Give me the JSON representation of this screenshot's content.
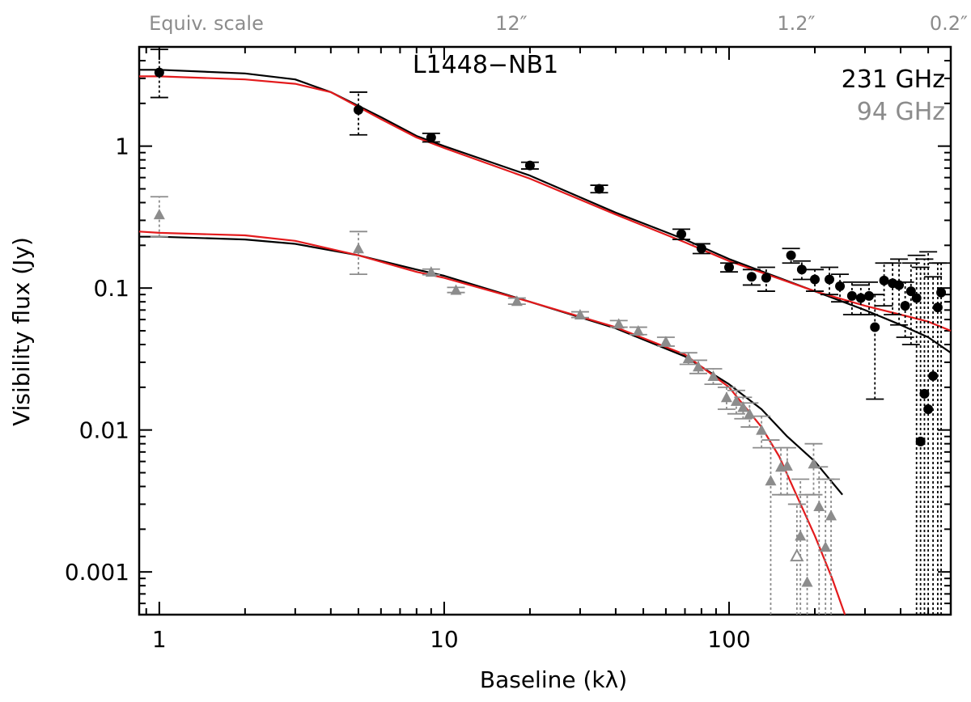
{
  "chart_data": {
    "type": "scatter",
    "title": "L1448−NB1",
    "xlabel": "Baseline (kλ)",
    "ylabel": "Visibility flux (Jy)",
    "xscale": "log",
    "yscale": "log",
    "xlim": [
      0.85,
      600
    ],
    "ylim": [
      0.0005,
      5
    ],
    "x_ticks": [
      1,
      10,
      100
    ],
    "x_tick_labels": [
      "1",
      "10",
      "100"
    ],
    "y_ticks": [
      0.001,
      0.01,
      0.1,
      1
    ],
    "y_tick_labels": [
      "0.001",
      "0.01",
      "0.1",
      "1"
    ],
    "top_axis": {
      "label": "Equiv. scale",
      "ticks": [
        {
          "text": "12",
          "baseline": 17.2
        },
        {
          "text": "1.2",
          "baseline": 172
        },
        {
          "text": "0.2",
          "baseline": 590
        }
      ],
      "unit_mark": "″"
    },
    "legend": [
      {
        "label": "231 GHz",
        "color": "#000000"
      },
      {
        "label": "94 GHz",
        "color": "#8c8c8c"
      }
    ],
    "series": [
      {
        "name": "231 GHz",
        "marker": "circle",
        "color": "#000000",
        "points": [
          {
            "x": 1,
            "y": 3.3,
            "lo": 2.2,
            "hi": 4.8
          },
          {
            "x": 5,
            "y": 1.8,
            "lo": 1.2,
            "hi": 2.4
          },
          {
            "x": 9,
            "y": 1.15,
            "lo": 1.07,
            "hi": 1.23
          },
          {
            "x": 20,
            "y": 0.73,
            "lo": 0.69,
            "hi": 0.77
          },
          {
            "x": 35,
            "y": 0.5,
            "lo": 0.47,
            "hi": 0.53
          },
          {
            "x": 68,
            "y": 0.24,
            "lo": 0.22,
            "hi": 0.26
          },
          {
            "x": 80,
            "y": 0.19,
            "lo": 0.175,
            "hi": 0.205
          },
          {
            "x": 100,
            "y": 0.14,
            "lo": 0.13,
            "hi": 0.15
          },
          {
            "x": 120,
            "y": 0.12,
            "lo": 0.105,
            "hi": 0.135
          },
          {
            "x": 135,
            "y": 0.118,
            "lo": 0.095,
            "hi": 0.14
          },
          {
            "x": 165,
            "y": 0.17,
            "lo": 0.15,
            "hi": 0.19
          },
          {
            "x": 180,
            "y": 0.135,
            "lo": 0.115,
            "hi": 0.155
          },
          {
            "x": 200,
            "y": 0.115,
            "lo": 0.095,
            "hi": 0.135
          },
          {
            "x": 225,
            "y": 0.115,
            "lo": 0.09,
            "hi": 0.14
          },
          {
            "x": 245,
            "y": 0.103,
            "lo": 0.08,
            "hi": 0.125
          },
          {
            "x": 270,
            "y": 0.088,
            "lo": 0.065,
            "hi": 0.11
          },
          {
            "x": 290,
            "y": 0.085,
            "lo": 0.065,
            "hi": 0.105
          },
          {
            "x": 310,
            "y": 0.088,
            "lo": 0.065,
            "hi": 0.11
          },
          {
            "x": 325,
            "y": 0.053,
            "lo": 0.0165,
            "hi": 0.09
          },
          {
            "x": 350,
            "y": 0.113,
            "lo": 0.075,
            "hi": 0.15
          },
          {
            "x": 375,
            "y": 0.108,
            "lo": 0.065,
            "hi": 0.15
          },
          {
            "x": 395,
            "y": 0.105,
            "lo": 0.055,
            "hi": 0.16
          },
          {
            "x": 415,
            "y": 0.075,
            "lo": 0.045,
            "hi": 0.11
          },
          {
            "x": 435,
            "y": 0.095,
            "lo": 0.04,
            "hi": 0.15
          },
          {
            "x": 455,
            "y": 0.085,
            "lo": 0.0005,
            "hi": 0.17
          },
          {
            "x": 470,
            "y": 0.0083,
            "lo": 0.0005,
            "hi": 0.14
          },
          {
            "x": 485,
            "y": 0.018,
            "lo": 0.0005,
            "hi": 0.16
          },
          {
            "x": 500,
            "y": 0.014,
            "lo": 0.0005,
            "hi": 0.18
          },
          {
            "x": 520,
            "y": 0.024,
            "lo": 0.0005,
            "hi": 0.12
          },
          {
            "x": 540,
            "y": 0.073,
            "lo": 0.0005,
            "hi": 0.15
          },
          {
            "x": 555,
            "y": 0.093,
            "lo": 0.0005,
            "hi": 0.15
          }
        ]
      },
      {
        "name": "94 GHz",
        "marker": "triangle",
        "color": "#8c8c8c",
        "points": [
          {
            "x": 1,
            "y": 0.33,
            "lo": 0.23,
            "hi": 0.44
          },
          {
            "x": 5,
            "y": 0.19,
            "lo": 0.125,
            "hi": 0.25
          },
          {
            "x": 9,
            "y": 0.13,
            "lo": 0.124,
            "hi": 0.136
          },
          {
            "x": 11,
            "y": 0.097,
            "lo": 0.093,
            "hi": 0.101
          },
          {
            "x": 18,
            "y": 0.081,
            "lo": 0.077,
            "hi": 0.085
          },
          {
            "x": 30,
            "y": 0.065,
            "lo": 0.062,
            "hi": 0.068
          },
          {
            "x": 41,
            "y": 0.056,
            "lo": 0.053,
            "hi": 0.059
          },
          {
            "x": 48,
            "y": 0.05,
            "lo": 0.047,
            "hi": 0.053
          },
          {
            "x": 60,
            "y": 0.042,
            "lo": 0.039,
            "hi": 0.045
          },
          {
            "x": 72,
            "y": 0.032,
            "lo": 0.029,
            "hi": 0.035
          },
          {
            "x": 78,
            "y": 0.028,
            "lo": 0.025,
            "hi": 0.031
          },
          {
            "x": 88,
            "y": 0.024,
            "lo": 0.021,
            "hi": 0.027
          },
          {
            "x": 98,
            "y": 0.017,
            "lo": 0.014,
            "hi": 0.02
          },
          {
            "x": 106,
            "y": 0.016,
            "lo": 0.013,
            "hi": 0.019
          },
          {
            "x": 112,
            "y": 0.0145,
            "lo": 0.012,
            "hi": 0.017
          },
          {
            "x": 118,
            "y": 0.013,
            "lo": 0.0105,
            "hi": 0.0155
          },
          {
            "x": 130,
            "y": 0.01,
            "lo": 0.0075,
            "hi": 0.0125
          },
          {
            "x": 140,
            "y": 0.0044,
            "lo": 0.0005,
            "hi": 0.0085
          },
          {
            "x": 152,
            "y": 0.0055,
            "lo": 0.0035,
            "hi": 0.0075
          },
          {
            "x": 160,
            "y": 0.0056,
            "lo": 0.0035,
            "hi": 0.0075
          },
          {
            "x": 178,
            "y": 0.0018,
            "lo": 0.0005,
            "hi": 0.0045
          },
          {
            "x": 188,
            "y": 0.00085,
            "lo": 0.0005,
            "hi": 0.0035
          },
          {
            "x": 198,
            "y": 0.0058,
            "lo": 0.0035,
            "hi": 0.008
          },
          {
            "x": 207,
            "y": 0.0029,
            "lo": 0.0005,
            "hi": 0.0055
          },
          {
            "x": 218,
            "y": 0.0015,
            "lo": 0.0005,
            "hi": 0.0045
          },
          {
            "x": 228,
            "y": 0.0025,
            "lo": 0.0005,
            "hi": 0.0045
          }
        ],
        "hollow_points": [
          {
            "x": 173,
            "y": 0.0013,
            "lo": 0.0005,
            "hi": 0.003
          }
        ]
      }
    ],
    "model_curves": [
      {
        "name": "231 GHz black model",
        "color": "#000000",
        "points": [
          [
            0.85,
            3.45
          ],
          [
            1,
            3.45
          ],
          [
            2,
            3.25
          ],
          [
            3,
            2.95
          ],
          [
            4,
            2.4
          ],
          [
            6,
            1.6
          ],
          [
            8,
            1.18
          ],
          [
            10,
            1.0
          ],
          [
            20,
            0.62
          ],
          [
            40,
            0.34
          ],
          [
            70,
            0.22
          ],
          [
            100,
            0.16
          ],
          [
            200,
            0.095
          ],
          [
            300,
            0.07
          ],
          [
            400,
            0.055
          ],
          [
            500,
            0.045
          ],
          [
            600,
            0.035
          ]
        ]
      },
      {
        "name": "231 GHz red model",
        "color": "#e31a1c",
        "points": [
          [
            0.85,
            3.1
          ],
          [
            1,
            3.1
          ],
          [
            2,
            2.95
          ],
          [
            3,
            2.75
          ],
          [
            4,
            2.4
          ],
          [
            6,
            1.55
          ],
          [
            8,
            1.15
          ],
          [
            10,
            0.97
          ],
          [
            20,
            0.59
          ],
          [
            40,
            0.33
          ],
          [
            70,
            0.21
          ],
          [
            100,
            0.155
          ],
          [
            200,
            0.095
          ],
          [
            300,
            0.075
          ],
          [
            400,
            0.065
          ],
          [
            500,
            0.058
          ],
          [
            600,
            0.05
          ]
        ]
      },
      {
        "name": "94 GHz black model",
        "color": "#000000",
        "points": [
          [
            0.85,
            0.23
          ],
          [
            1,
            0.23
          ],
          [
            2,
            0.22
          ],
          [
            3,
            0.205
          ],
          [
            5,
            0.17
          ],
          [
            8,
            0.135
          ],
          [
            10,
            0.122
          ],
          [
            20,
            0.08
          ],
          [
            40,
            0.052
          ],
          [
            70,
            0.033
          ],
          [
            100,
            0.021
          ],
          [
            130,
            0.014
          ],
          [
            160,
            0.009
          ],
          [
            200,
            0.006
          ],
          [
            250,
            0.0035
          ]
        ]
      },
      {
        "name": "94 GHz red model",
        "color": "#e31a1c",
        "points": [
          [
            0.85,
            0.25
          ],
          [
            1,
            0.245
          ],
          [
            2,
            0.235
          ],
          [
            3,
            0.215
          ],
          [
            5,
            0.17
          ],
          [
            8,
            0.13
          ],
          [
            10,
            0.118
          ],
          [
            20,
            0.08
          ],
          [
            40,
            0.053
          ],
          [
            70,
            0.034
          ],
          [
            100,
            0.02
          ],
          [
            130,
            0.0105
          ],
          [
            150,
            0.0065
          ],
          [
            170,
            0.0037
          ],
          [
            200,
            0.0018
          ],
          [
            230,
            0.0009
          ],
          [
            255,
            0.0005
          ]
        ]
      }
    ]
  }
}
